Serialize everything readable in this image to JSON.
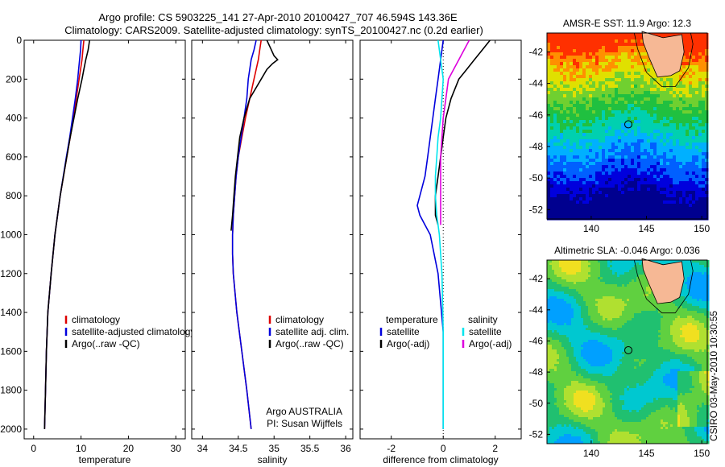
{
  "header": {
    "line1": "Argo profile: CS 5903225_141 27-Apr-2010 20100427_707 46.594S 143.36E",
    "line2": "Climatology: CARS2009. Satellite-adjusted climatology: synTS_20100427.nc (0.2d earlier)"
  },
  "colors": {
    "climatology": "#dd0000",
    "satellite": "#0000dd",
    "argo": "#000000",
    "sal_satellite": "#00e5ee",
    "sal_argo": "#dd00dd",
    "land": "#f6b895"
  },
  "depth_axis": {
    "ylim": [
      0,
      2050
    ],
    "ticks": [
      "0",
      "200",
      "400",
      "600",
      "800",
      "1000",
      "1200",
      "1400",
      "1600",
      "1800",
      "2000"
    ],
    "tick_values": [
      0,
      200,
      400,
      600,
      800,
      1000,
      1200,
      1400,
      1600,
      1800,
      2000
    ]
  },
  "chart_data": [
    {
      "type": "line",
      "id": "temperature",
      "xlabel": "temperature",
      "xlim": [
        -2,
        32
      ],
      "xticks": [
        "0",
        "10",
        "20",
        "30"
      ],
      "xtick_values": [
        0,
        10,
        20,
        30
      ],
      "series": [
        {
          "name": "climatology",
          "color": "#dd0000",
          "depth": [
            0,
            50,
            100,
            150,
            200,
            300,
            400,
            500,
            600,
            800,
            1000,
            1200,
            1400,
            1600,
            1800,
            2000
          ],
          "values": [
            10.6,
            10.4,
            10.2,
            9.9,
            9.6,
            9.0,
            8.4,
            7.7,
            7.0,
            5.6,
            4.5,
            3.7,
            3.0,
            2.7,
            2.5,
            2.3
          ]
        },
        {
          "name": "satellite-adjusted climatology",
          "color": "#0000dd",
          "depth": [
            0,
            50,
            100,
            150,
            200,
            300,
            400,
            500,
            600,
            800,
            1000,
            1200,
            1400,
            1600,
            1800,
            2000
          ],
          "values": [
            10.0,
            9.9,
            9.7,
            9.5,
            9.3,
            8.8,
            8.2,
            7.6,
            6.9,
            5.6,
            4.5,
            3.7,
            3.0,
            2.7,
            2.5,
            2.3
          ]
        },
        {
          "name": "Argo(..raw -QC)",
          "color": "#000000",
          "depth": [
            0,
            50,
            100,
            150,
            200,
            300,
            400,
            500,
            600,
            800,
            1000,
            1200,
            1400,
            1600,
            1800,
            2000
          ],
          "values": [
            11.8,
            11.5,
            11.0,
            10.6,
            10.2,
            9.3,
            8.5,
            7.7,
            7.0,
            5.6,
            4.5,
            3.7,
            3.0,
            2.7,
            2.5,
            2.3
          ]
        }
      ],
      "legend": [
        "climatology",
        "satellite-adjusted climatology",
        "Argo(..raw -QC)"
      ]
    },
    {
      "type": "line",
      "id": "salinity",
      "xlabel": "salinity",
      "xlim": [
        33.85,
        36.1
      ],
      "xticks": [
        "34",
        "34.5",
        "35",
        "35.5",
        "36"
      ],
      "xtick_values": [
        34,
        34.5,
        35,
        35.5,
        36
      ],
      "series": [
        {
          "name": "climatology",
          "color": "#dd0000",
          "depth": [
            0,
            50,
            100,
            150,
            200,
            300,
            400,
            500,
            600,
            700,
            800,
            900,
            1000,
            1100,
            1200,
            1400,
            1600,
            1800,
            2000
          ],
          "values": [
            34.82,
            34.8,
            34.78,
            34.75,
            34.72,
            34.66,
            34.6,
            34.55,
            34.5,
            34.47,
            34.45,
            34.43,
            34.42,
            34.42,
            34.43,
            34.48,
            34.55,
            34.62,
            34.68
          ]
        },
        {
          "name": "satellite adj. clim.",
          "color": "#0000dd",
          "depth": [
            0,
            50,
            100,
            150,
            200,
            300,
            400,
            500,
            600,
            700,
            800,
            900,
            1000,
            1100,
            1200,
            1400,
            1600,
            1800,
            2000
          ],
          "values": [
            34.75,
            34.72,
            34.68,
            34.66,
            34.64,
            34.62,
            34.58,
            34.54,
            34.5,
            34.47,
            34.45,
            34.43,
            34.42,
            34.42,
            34.43,
            34.48,
            34.55,
            34.62,
            34.68
          ]
        },
        {
          "name": "Argo(..raw -QC)",
          "color": "#000000",
          "depth": [
            0,
            40,
            80,
            100,
            120,
            150,
            200,
            300,
            400,
            500,
            600,
            700,
            800,
            900,
            980
          ],
          "values": [
            34.9,
            34.95,
            35.0,
            35.05,
            34.98,
            34.9,
            34.82,
            34.66,
            34.58,
            34.52,
            34.49,
            34.46,
            34.44,
            34.42,
            34.4
          ]
        }
      ],
      "legend": [
        "climatology",
        "satellite adj. clim.",
        "Argo(..raw -QC)"
      ],
      "annotation": [
        "Argo AUSTRALIA",
        "PI: Susan Wijffels"
      ]
    },
    {
      "type": "line",
      "id": "difference",
      "xlabel": "difference from climatology",
      "xlim": [
        -3.2,
        3.0
      ],
      "xticks": [
        "-2",
        "0",
        "2"
      ],
      "xtick_values": [
        -2,
        0,
        2
      ],
      "series": [
        {
          "name": "temperature satellite",
          "color": "#0000dd",
          "depth": [
            0,
            100,
            200,
            300,
            400,
            500,
            600,
            700,
            800,
            850,
            900,
            950,
            1000,
            1200,
            1500,
            1800,
            2000
          ],
          "values": [
            0.0,
            -0.1,
            -0.2,
            -0.3,
            -0.4,
            -0.5,
            -0.6,
            -0.7,
            -0.9,
            -1.0,
            -0.9,
            -0.7,
            -0.5,
            -0.2,
            0.0,
            0.0,
            0.0
          ]
        },
        {
          "name": "temperature Argo(-adj)",
          "color": "#000000",
          "depth": [
            0,
            50,
            100,
            150,
            200,
            300,
            400,
            500,
            600,
            700,
            800,
            900,
            950
          ],
          "values": [
            1.8,
            1.5,
            1.2,
            0.9,
            0.6,
            0.3,
            0.1,
            0.0,
            -0.1,
            -0.2,
            -0.3,
            -0.3,
            -0.2
          ]
        },
        {
          "name": "salinity satellite",
          "color": "#00e5ee",
          "depth": [
            0,
            100,
            200,
            300,
            400,
            500,
            600,
            700,
            800,
            900,
            1000,
            1200,
            1500,
            1800,
            2000
          ],
          "values": [
            -0.2,
            -0.1,
            0.0,
            -0.05,
            -0.1,
            -0.2,
            -0.25,
            -0.3,
            -0.3,
            -0.25,
            -0.15,
            -0.05,
            0.0,
            0.0,
            0.0
          ]
        },
        {
          "name": "salinity Argo(-adj)",
          "color": "#dd00dd",
          "depth": [
            0,
            50,
            100,
            150,
            200,
            300,
            400,
            500,
            600,
            700,
            800,
            900,
            950
          ],
          "values": [
            1.0,
            0.8,
            0.6,
            0.4,
            0.2,
            0.1,
            0.0,
            -0.05,
            -0.1,
            -0.1,
            -0.1,
            -0.1,
            -0.1
          ]
        }
      ],
      "legend_left": {
        "title": "temperature",
        "items": [
          "satellite",
          "Argo(-adj)"
        ]
      },
      "legend_right": {
        "title": "salinity",
        "items": [
          "satellite",
          "Argo(-adj)"
        ]
      }
    },
    {
      "type": "heatmap",
      "id": "sst-map",
      "title": "AMSR-E SST: 11.9 Argo: 12.3",
      "xlim": [
        136,
        150.5
      ],
      "ylim": [
        -52.6,
        -40.8
      ],
      "xticks": [
        "140",
        "145",
        "150"
      ],
      "xtick_values": [
        140,
        145,
        150
      ],
      "yticks": [
        "-42",
        "-44",
        "-46",
        "-48",
        "-50",
        "-52"
      ],
      "ytick_values": [
        -42,
        -44,
        -46,
        -48,
        -50,
        -52
      ],
      "marker": [
        143.36,
        -46.594
      ]
    },
    {
      "type": "heatmap",
      "id": "sla-map",
      "title": "Altimetric SLA: -0.046 Argo: 0.036",
      "xlim": [
        136,
        150.5
      ],
      "ylim": [
        -52.6,
        -40.8
      ],
      "xticks": [
        "140",
        "145",
        "150"
      ],
      "xtick_values": [
        140,
        145,
        150
      ],
      "yticks": [
        "-42",
        "-44",
        "-46",
        "-48",
        "-50",
        "-52"
      ],
      "ytick_values": [
        -42,
        -44,
        -46,
        -48,
        -50,
        -52
      ],
      "marker": [
        143.36,
        -46.594
      ]
    }
  ],
  "footer": "CSIRO 03-May-2010 10:30:55"
}
